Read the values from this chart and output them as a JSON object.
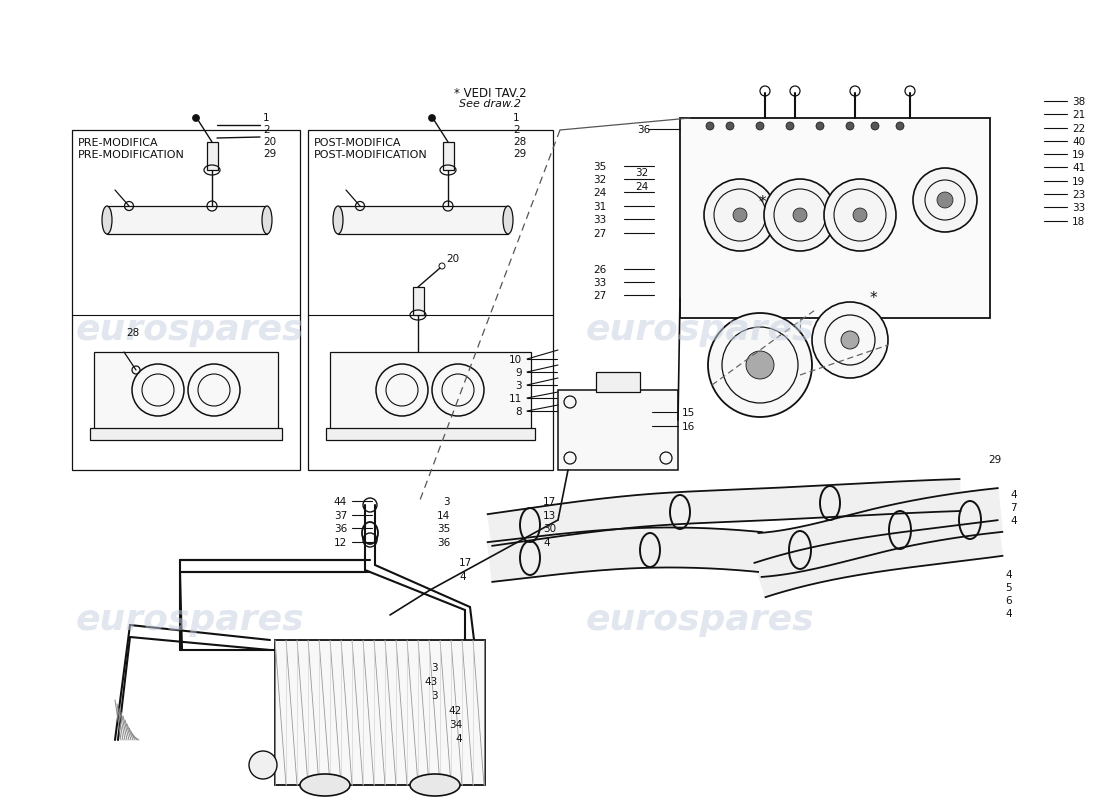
{
  "bg_color": "#ffffff",
  "line_color": "#111111",
  "watermark_color": "#c5cfe0",
  "note_1": "* VEDI TAV.2",
  "note_2": "See draw.2",
  "pre_title_1": "PRE-MODIFICA",
  "pre_title_2": "PRE-MODIFICATION",
  "post_title_1": "POST-MODIFICA",
  "post_title_2": "POST-MODIFICATION",
  "right_col": [
    [
      1072,
      97,
      "38"
    ],
    [
      1072,
      110,
      "21"
    ],
    [
      1072,
      124,
      "22"
    ],
    [
      1072,
      137,
      "40"
    ],
    [
      1072,
      150,
      "19"
    ],
    [
      1072,
      163,
      "41"
    ],
    [
      1072,
      177,
      "19"
    ],
    [
      1072,
      190,
      "23"
    ],
    [
      1072,
      203,
      "33"
    ],
    [
      1072,
      217,
      "18"
    ]
  ],
  "left_therm_col": [
    [
      624,
      162,
      "35"
    ],
    [
      624,
      175,
      "32"
    ],
    [
      624,
      188,
      "24"
    ],
    [
      624,
      202,
      "31"
    ],
    [
      624,
      215,
      "33"
    ],
    [
      624,
      229,
      "27"
    ],
    [
      624,
      265,
      "26"
    ],
    [
      624,
      278,
      "33"
    ],
    [
      624,
      291,
      "27"
    ]
  ],
  "left_mid_labels": [
    [
      527,
      355,
      "10"
    ],
    [
      527,
      368,
      "9"
    ],
    [
      527,
      381,
      "3"
    ],
    [
      527,
      394,
      "11"
    ],
    [
      527,
      407,
      "8"
    ]
  ],
  "tank_right_labels": [
    [
      682,
      408,
      "15"
    ],
    [
      682,
      422,
      "16"
    ]
  ],
  "left_pipe_col": [
    [
      352,
      497,
      "44"
    ],
    [
      352,
      511,
      "37"
    ],
    [
      352,
      524,
      "36"
    ],
    [
      352,
      538,
      "12"
    ]
  ],
  "mid_pipe_col": [
    [
      455,
      497,
      "3"
    ],
    [
      455,
      511,
      "14"
    ],
    [
      455,
      524,
      "35"
    ],
    [
      455,
      538,
      "36"
    ]
  ],
  "right_pipe_col_1": [
    [
      543,
      497,
      "17"
    ],
    [
      543,
      511,
      "13"
    ],
    [
      543,
      524,
      "30"
    ],
    [
      543,
      538,
      "4"
    ]
  ],
  "lower_labels": [
    [
      459,
      558,
      "17"
    ],
    [
      459,
      572,
      "4"
    ]
  ],
  "far_right_labels": [
    [
      1010,
      490,
      "4"
    ],
    [
      1010,
      503,
      "7"
    ],
    [
      1010,
      516,
      "4"
    ],
    [
      988,
      455,
      "29"
    ]
  ],
  "far_right_lower": [
    [
      1005,
      570,
      "4"
    ],
    [
      1005,
      583,
      "5"
    ],
    [
      1005,
      596,
      "6"
    ],
    [
      1005,
      609,
      "4"
    ]
  ],
  "radiator_labels": [
    [
      443,
      663,
      "3"
    ],
    [
      443,
      677,
      "43"
    ],
    [
      443,
      691,
      "3"
    ],
    [
      467,
      706,
      "42"
    ],
    [
      467,
      720,
      "34"
    ],
    [
      467,
      734,
      "4"
    ]
  ]
}
